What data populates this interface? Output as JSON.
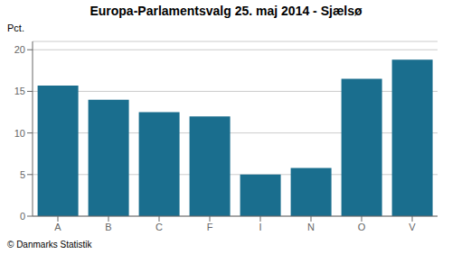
{
  "chart_data": {
    "type": "bar",
    "title": "Europa-Parlamentsvalg 25. maj 2014 - Sjælsø",
    "categories": [
      "A",
      "B",
      "C",
      "F",
      "I",
      "N",
      "O",
      "V"
    ],
    "values": [
      15.7,
      14.0,
      12.5,
      12.0,
      5.0,
      5.8,
      16.5,
      18.8
    ],
    "color": "#1a6e8e",
    "ylabel": "Pct.",
    "ylim": [
      0,
      21
    ],
    "yticks": [
      0,
      5,
      10,
      15,
      20
    ],
    "grid": true,
    "annotations": [
      "© Danmarks Statistik"
    ]
  }
}
